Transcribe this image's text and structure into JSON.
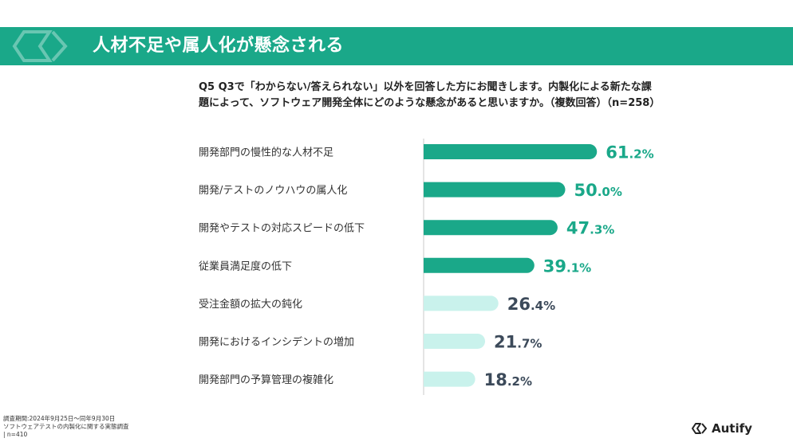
{
  "header": {
    "title": "人材不足や属人化が懸念される"
  },
  "question": "Q5 Q3で「わからない/答えられない」以外を回答した方にお聞きします。内製化による新たな課題によって、ソフトウェア開発全体にどのような懸念があると思いますか。（複数回答）（n=258）",
  "chart_data": {
    "type": "bar",
    "orientation": "horizontal",
    "categories": [
      "開発部門の慢性的な人材不足",
      "開発/テストのノウハウの属人化",
      "開発やテストの対応スピードの低下",
      "従業員満足度の低下",
      "受注金額の拡大の鈍化",
      "開発におけるインシデントの増加",
      "開発部門の予算管理の複雑化"
    ],
    "values": [
      61.2,
      50.0,
      47.3,
      39.1,
      26.4,
      21.7,
      18.2
    ],
    "value_labels": [
      {
        "num": "61",
        "dec": ".2%"
      },
      {
        "num": "50",
        "dec": ".0%"
      },
      {
        "num": "47",
        "dec": ".3%"
      },
      {
        "num": "39",
        "dec": ".1%"
      },
      {
        "num": "26",
        "dec": ".4%"
      },
      {
        "num": "21",
        "dec": ".7%"
      },
      {
        "num": "18",
        "dec": ".2%"
      }
    ],
    "unit": "%",
    "highlight_count": 4,
    "colors": {
      "highlight": "#1aa889",
      "normal": "#c9f2ec",
      "highlight_text": "#1aa889",
      "normal_text": "#3c4a5a"
    }
  },
  "footer": {
    "lines": [
      "調査期間:2024年9月25日～同年9月30日",
      "ソフトウェアテストの内製化に関する実態調査",
      "| n=410"
    ]
  },
  "logo": {
    "text": "Autify"
  },
  "colors": {
    "brand": "#1aa889"
  }
}
